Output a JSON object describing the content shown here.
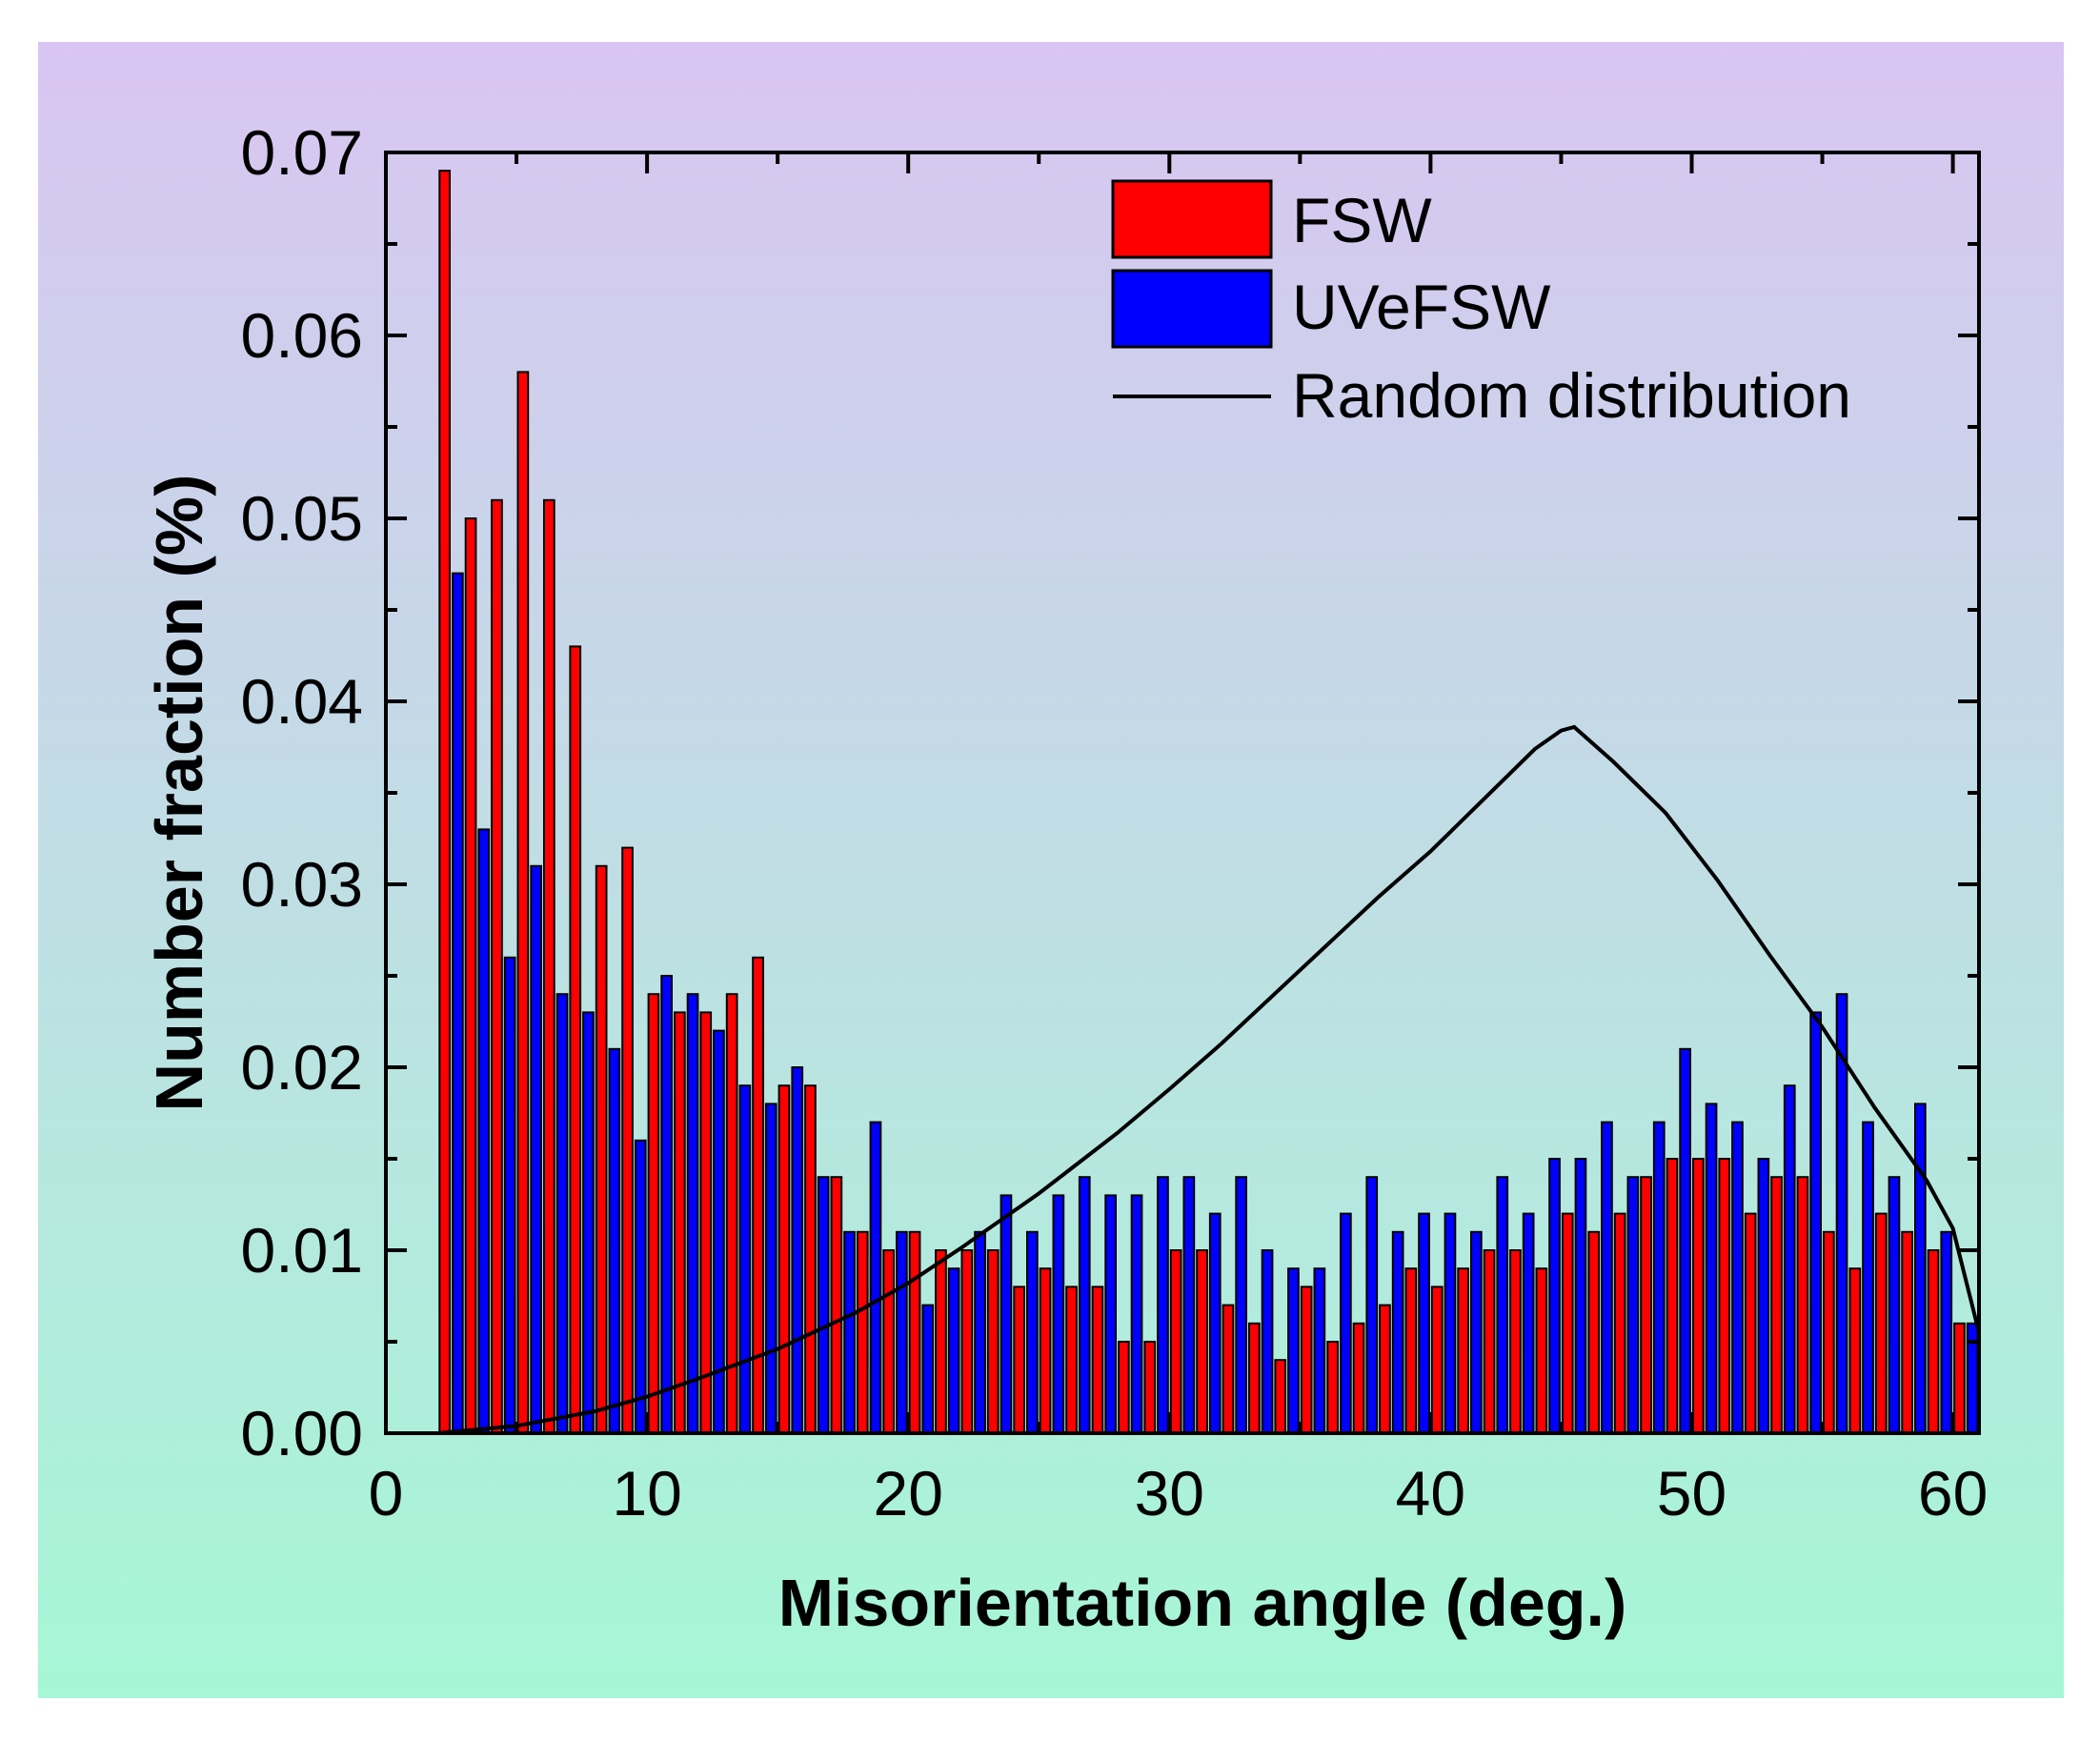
{
  "chart_data": {
    "type": "bar",
    "title": "",
    "xlabel": "Misorientation angle (deg.)",
    "ylabel": "Number fraction (%)",
    "xlim": [
      0,
      61
    ],
    "ylim": [
      0,
      0.07
    ],
    "x_ticks": [
      0,
      10,
      20,
      30,
      40,
      50,
      60
    ],
    "x_tick_labels": [
      "0",
      "10",
      "20",
      "30",
      "40",
      "50",
      "60"
    ],
    "y_ticks": [
      0,
      0.01,
      0.02,
      0.03,
      0.04,
      0.05,
      0.06,
      0.07
    ],
    "y_tick_labels": [
      "0.00",
      "0.01",
      "0.02",
      "0.03",
      "0.04",
      "0.05",
      "0.06",
      "0.07"
    ],
    "bin_width": 1,
    "x": [
      2.5,
      3.5,
      4.5,
      5.5,
      6.5,
      7.5,
      8.5,
      9.5,
      10.5,
      11.5,
      12.5,
      13.5,
      14.5,
      15.5,
      16.5,
      17.5,
      18.5,
      19.5,
      20.5,
      21.5,
      22.5,
      23.5,
      24.5,
      25.5,
      26.5,
      27.5,
      28.5,
      29.5,
      30.5,
      31.5,
      32.5,
      33.5,
      34.5,
      35.5,
      36.5,
      37.5,
      38.5,
      39.5,
      40.5,
      41.5,
      42.5,
      43.5,
      44.5,
      45.5,
      46.5,
      47.5,
      48.5,
      49.5,
      50.5,
      51.5,
      52.5,
      53.5,
      54.5,
      55.5,
      56.5,
      57.5,
      58.5,
      59.5,
      60.5
    ],
    "series": [
      {
        "name": "FSW",
        "color": "#ff0000",
        "values": [
          0.069,
          0.05,
          0.051,
          0.058,
          0.051,
          0.043,
          0.031,
          0.032,
          0.024,
          0.023,
          0.023,
          0.024,
          0.026,
          0.019,
          0.019,
          0.014,
          0.011,
          0.01,
          0.011,
          0.01,
          0.01,
          0.01,
          0.008,
          0.009,
          0.008,
          0.008,
          0.005,
          0.005,
          0.01,
          0.01,
          0.007,
          0.006,
          0.004,
          0.008,
          0.005,
          0.006,
          0.007,
          0.009,
          0.008,
          0.009,
          0.01,
          0.01,
          0.009,
          0.012,
          0.011,
          0.012,
          0.014,
          0.015,
          0.015,
          0.015,
          0.012,
          0.014,
          0.014,
          0.011,
          0.009,
          0.012,
          0.011,
          0.01,
          0.006
        ]
      },
      {
        "name": "UVeFSW",
        "color": "#0000ff",
        "values": [
          0.047,
          0.033,
          0.026,
          0.031,
          0.024,
          0.023,
          0.021,
          0.016,
          0.025,
          0.024,
          0.022,
          0.019,
          0.018,
          0.02,
          0.014,
          0.011,
          0.017,
          0.011,
          0.007,
          0.009,
          0.011,
          0.013,
          0.011,
          0.013,
          0.014,
          0.013,
          0.013,
          0.014,
          0.014,
          0.012,
          0.014,
          0.01,
          0.009,
          0.009,
          0.012,
          0.014,
          0.011,
          0.012,
          0.012,
          0.011,
          0.014,
          0.012,
          0.015,
          0.015,
          0.017,
          0.014,
          0.017,
          0.021,
          0.018,
          0.017,
          0.015,
          0.019,
          0.023,
          0.024,
          0.017,
          0.014,
          0.018,
          0.011,
          0.006
        ]
      },
      {
        "name": "Random distribution",
        "type": "line",
        "color": "#000000",
        "x": [
          2,
          5,
          8,
          10,
          12,
          15,
          18,
          20,
          22,
          25,
          28,
          30,
          32,
          35,
          38,
          40,
          42,
          44,
          45,
          45.5,
          47,
          49,
          51,
          53,
          55,
          57,
          59,
          60,
          61
        ],
        "values": [
          0.0,
          0.0004,
          0.0012,
          0.002,
          0.003,
          0.0046,
          0.0066,
          0.0082,
          0.0101,
          0.0131,
          0.0164,
          0.0188,
          0.0213,
          0.0253,
          0.0293,
          0.0318,
          0.0346,
          0.0374,
          0.0384,
          0.0386,
          0.0367,
          0.0339,
          0.0302,
          0.0261,
          0.0222,
          0.0178,
          0.0138,
          0.0112,
          0.0055
        ]
      }
    ],
    "legend": {
      "position": "top-right",
      "entries": [
        "FSW",
        "UVeFSW",
        "Random distribution"
      ]
    },
    "grid": false,
    "background_gradient": [
      "#d9c5f2",
      "#a6f7d6"
    ]
  }
}
